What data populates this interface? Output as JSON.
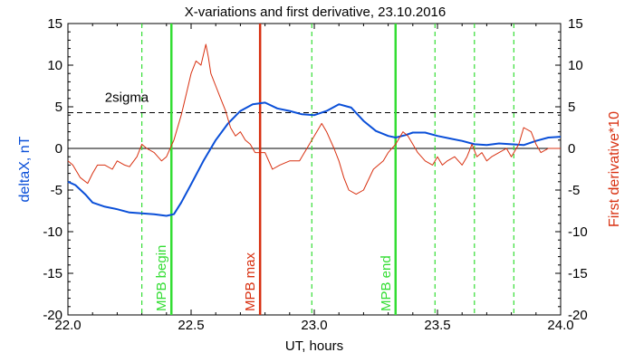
{
  "chart_data": {
    "type": "line",
    "title": "X-variations and first derivative, 23.10.2016",
    "xlabel": "UT, hours",
    "ylabel_left": "deltaX, nT",
    "ylabel_right": "First derivative*10",
    "xlim": [
      22.0,
      24.0
    ],
    "ylim": [
      -20,
      15
    ],
    "x_ticks": [
      22.0,
      22.5,
      23.0,
      23.5,
      24.0
    ],
    "x_tick_labels": [
      "22.0",
      "22.5",
      "23.0",
      "23.5",
      "24.0"
    ],
    "y_ticks": [
      -20,
      -15,
      -10,
      -5,
      0,
      5,
      10,
      15
    ],
    "y_tick_labels": [
      "-20",
      "-15",
      "-10",
      "-5",
      "0",
      "5",
      "10",
      "15"
    ],
    "grid": false,
    "zero_line": 0,
    "threshold": {
      "label": "2sigma",
      "value": 4.3,
      "label_x": 22.15
    },
    "vlines": [
      {
        "x": 22.3,
        "style": "dashed",
        "color": "#33dd33",
        "label": ""
      },
      {
        "x": 22.42,
        "style": "solid",
        "color": "#33dd33",
        "label": "MPB begin"
      },
      {
        "x": 22.78,
        "style": "solid",
        "color": "#d83010",
        "label": "MPB max"
      },
      {
        "x": 22.99,
        "style": "dashed",
        "color": "#33dd33",
        "label": ""
      },
      {
        "x": 23.33,
        "style": "solid",
        "color": "#33dd33",
        "label": "MPB end"
      },
      {
        "x": 23.49,
        "style": "dashed",
        "color": "#33dd33",
        "label": ""
      },
      {
        "x": 23.65,
        "style": "dashed",
        "color": "#33dd33",
        "label": ""
      },
      {
        "x": 23.81,
        "style": "dashed",
        "color": "#33dd33",
        "label": ""
      }
    ],
    "series": [
      {
        "name": "",
        "axis": "left",
        "color": "#0a4fd8",
        "width": 2,
        "x": [
          22.0,
          22.03,
          22.07,
          22.1,
          22.15,
          22.2,
          22.25,
          22.3,
          22.35,
          22.4,
          22.43,
          22.46,
          22.5,
          22.55,
          22.6,
          22.65,
          22.7,
          22.75,
          22.8,
          22.85,
          22.9,
          22.95,
          23.0,
          23.05,
          23.1,
          23.15,
          23.2,
          23.25,
          23.3,
          23.33,
          23.37,
          23.4,
          23.45,
          23.5,
          23.55,
          23.6,
          23.65,
          23.7,
          23.75,
          23.8,
          23.85,
          23.9,
          23.95,
          24.0
        ],
        "y": [
          -4.0,
          -4.4,
          -5.5,
          -6.5,
          -7.0,
          -7.3,
          -7.7,
          -7.8,
          -7.9,
          -8.1,
          -7.9,
          -6.5,
          -4.3,
          -1.5,
          1.0,
          3.0,
          4.5,
          5.3,
          5.5,
          4.8,
          4.5,
          4.1,
          4.0,
          4.5,
          5.3,
          4.9,
          3.3,
          2.1,
          1.5,
          1.3,
          1.6,
          1.9,
          1.9,
          1.5,
          1.2,
          0.9,
          0.5,
          0.4,
          0.6,
          0.5,
          0.4,
          0.9,
          1.3,
          1.4
        ]
      },
      {
        "name": "",
        "axis": "right",
        "color": "#d83010",
        "width": 1,
        "x": [
          22.0,
          22.02,
          22.05,
          22.08,
          22.1,
          22.12,
          22.15,
          22.18,
          22.2,
          22.23,
          22.25,
          22.28,
          22.3,
          22.32,
          22.35,
          22.38,
          22.4,
          22.43,
          22.46,
          22.48,
          22.5,
          22.52,
          22.54,
          22.56,
          22.57,
          22.58,
          22.6,
          22.62,
          22.64,
          22.66,
          22.68,
          22.7,
          22.72,
          22.74,
          22.76,
          22.78,
          22.8,
          22.83,
          22.86,
          22.9,
          22.94,
          22.96,
          22.98,
          23.0,
          23.03,
          23.05,
          23.08,
          23.1,
          23.12,
          23.14,
          23.17,
          23.2,
          23.24,
          23.28,
          23.3,
          23.33,
          23.36,
          23.38,
          23.4,
          23.42,
          23.45,
          23.48,
          23.5,
          23.52,
          23.54,
          23.57,
          23.6,
          23.62,
          23.64,
          23.66,
          23.68,
          23.7,
          23.72,
          23.75,
          23.78,
          23.8,
          23.83,
          23.85,
          23.88,
          23.9,
          23.92,
          23.95,
          23.98,
          24.0
        ],
        "y": [
          -1.5,
          -2.0,
          -3.5,
          -4.2,
          -3.0,
          -2.0,
          -2.0,
          -2.5,
          -1.5,
          -2.0,
          -2.2,
          -1.0,
          0.5,
          0.0,
          -0.5,
          -1.5,
          -1.0,
          1.0,
          4.0,
          6.5,
          9.0,
          10.5,
          10.0,
          12.5,
          11.0,
          9.0,
          7.5,
          6.0,
          4.5,
          2.5,
          1.5,
          2.0,
          1.0,
          0.5,
          -0.5,
          -0.5,
          -0.5,
          -2.5,
          -2.0,
          -1.5,
          -1.5,
          -0.5,
          0.5,
          1.5,
          3.0,
          2.0,
          0.0,
          -1.5,
          -3.5,
          -5.0,
          -5.5,
          -5.0,
          -2.5,
          -1.5,
          -0.5,
          0.5,
          2.0,
          1.5,
          0.5,
          -0.5,
          -1.5,
          -2.0,
          -1.0,
          -2.0,
          -1.5,
          -1.0,
          -2.0,
          -1.0,
          0.5,
          -1.0,
          -0.5,
          -1.5,
          -1.0,
          -0.5,
          0.0,
          -1.0,
          0.5,
          2.5,
          2.0,
          0.5,
          -0.5,
          0.0,
          0.0,
          0.0
        ]
      }
    ]
  }
}
